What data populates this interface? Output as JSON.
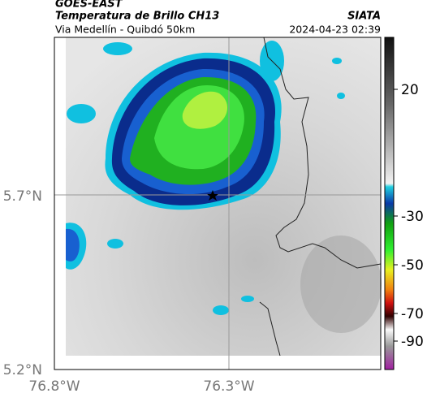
{
  "header": {
    "source": "GOES-EAST",
    "title": "Temperatura de Brillo CH13",
    "subtitle": "Via Medellín - Quibdó 50km",
    "brand": "SIATA",
    "timestamp": "2024-04-23 02:39"
  },
  "map": {
    "lat_ticks": [
      "5.7°N",
      "5.2°N"
    ],
    "lon_ticks": [
      "76.8°W",
      "76.3°W"
    ]
  },
  "colorbar": {
    "ticks": [
      20,
      -30,
      -50,
      -70,
      -90
    ]
  }
}
